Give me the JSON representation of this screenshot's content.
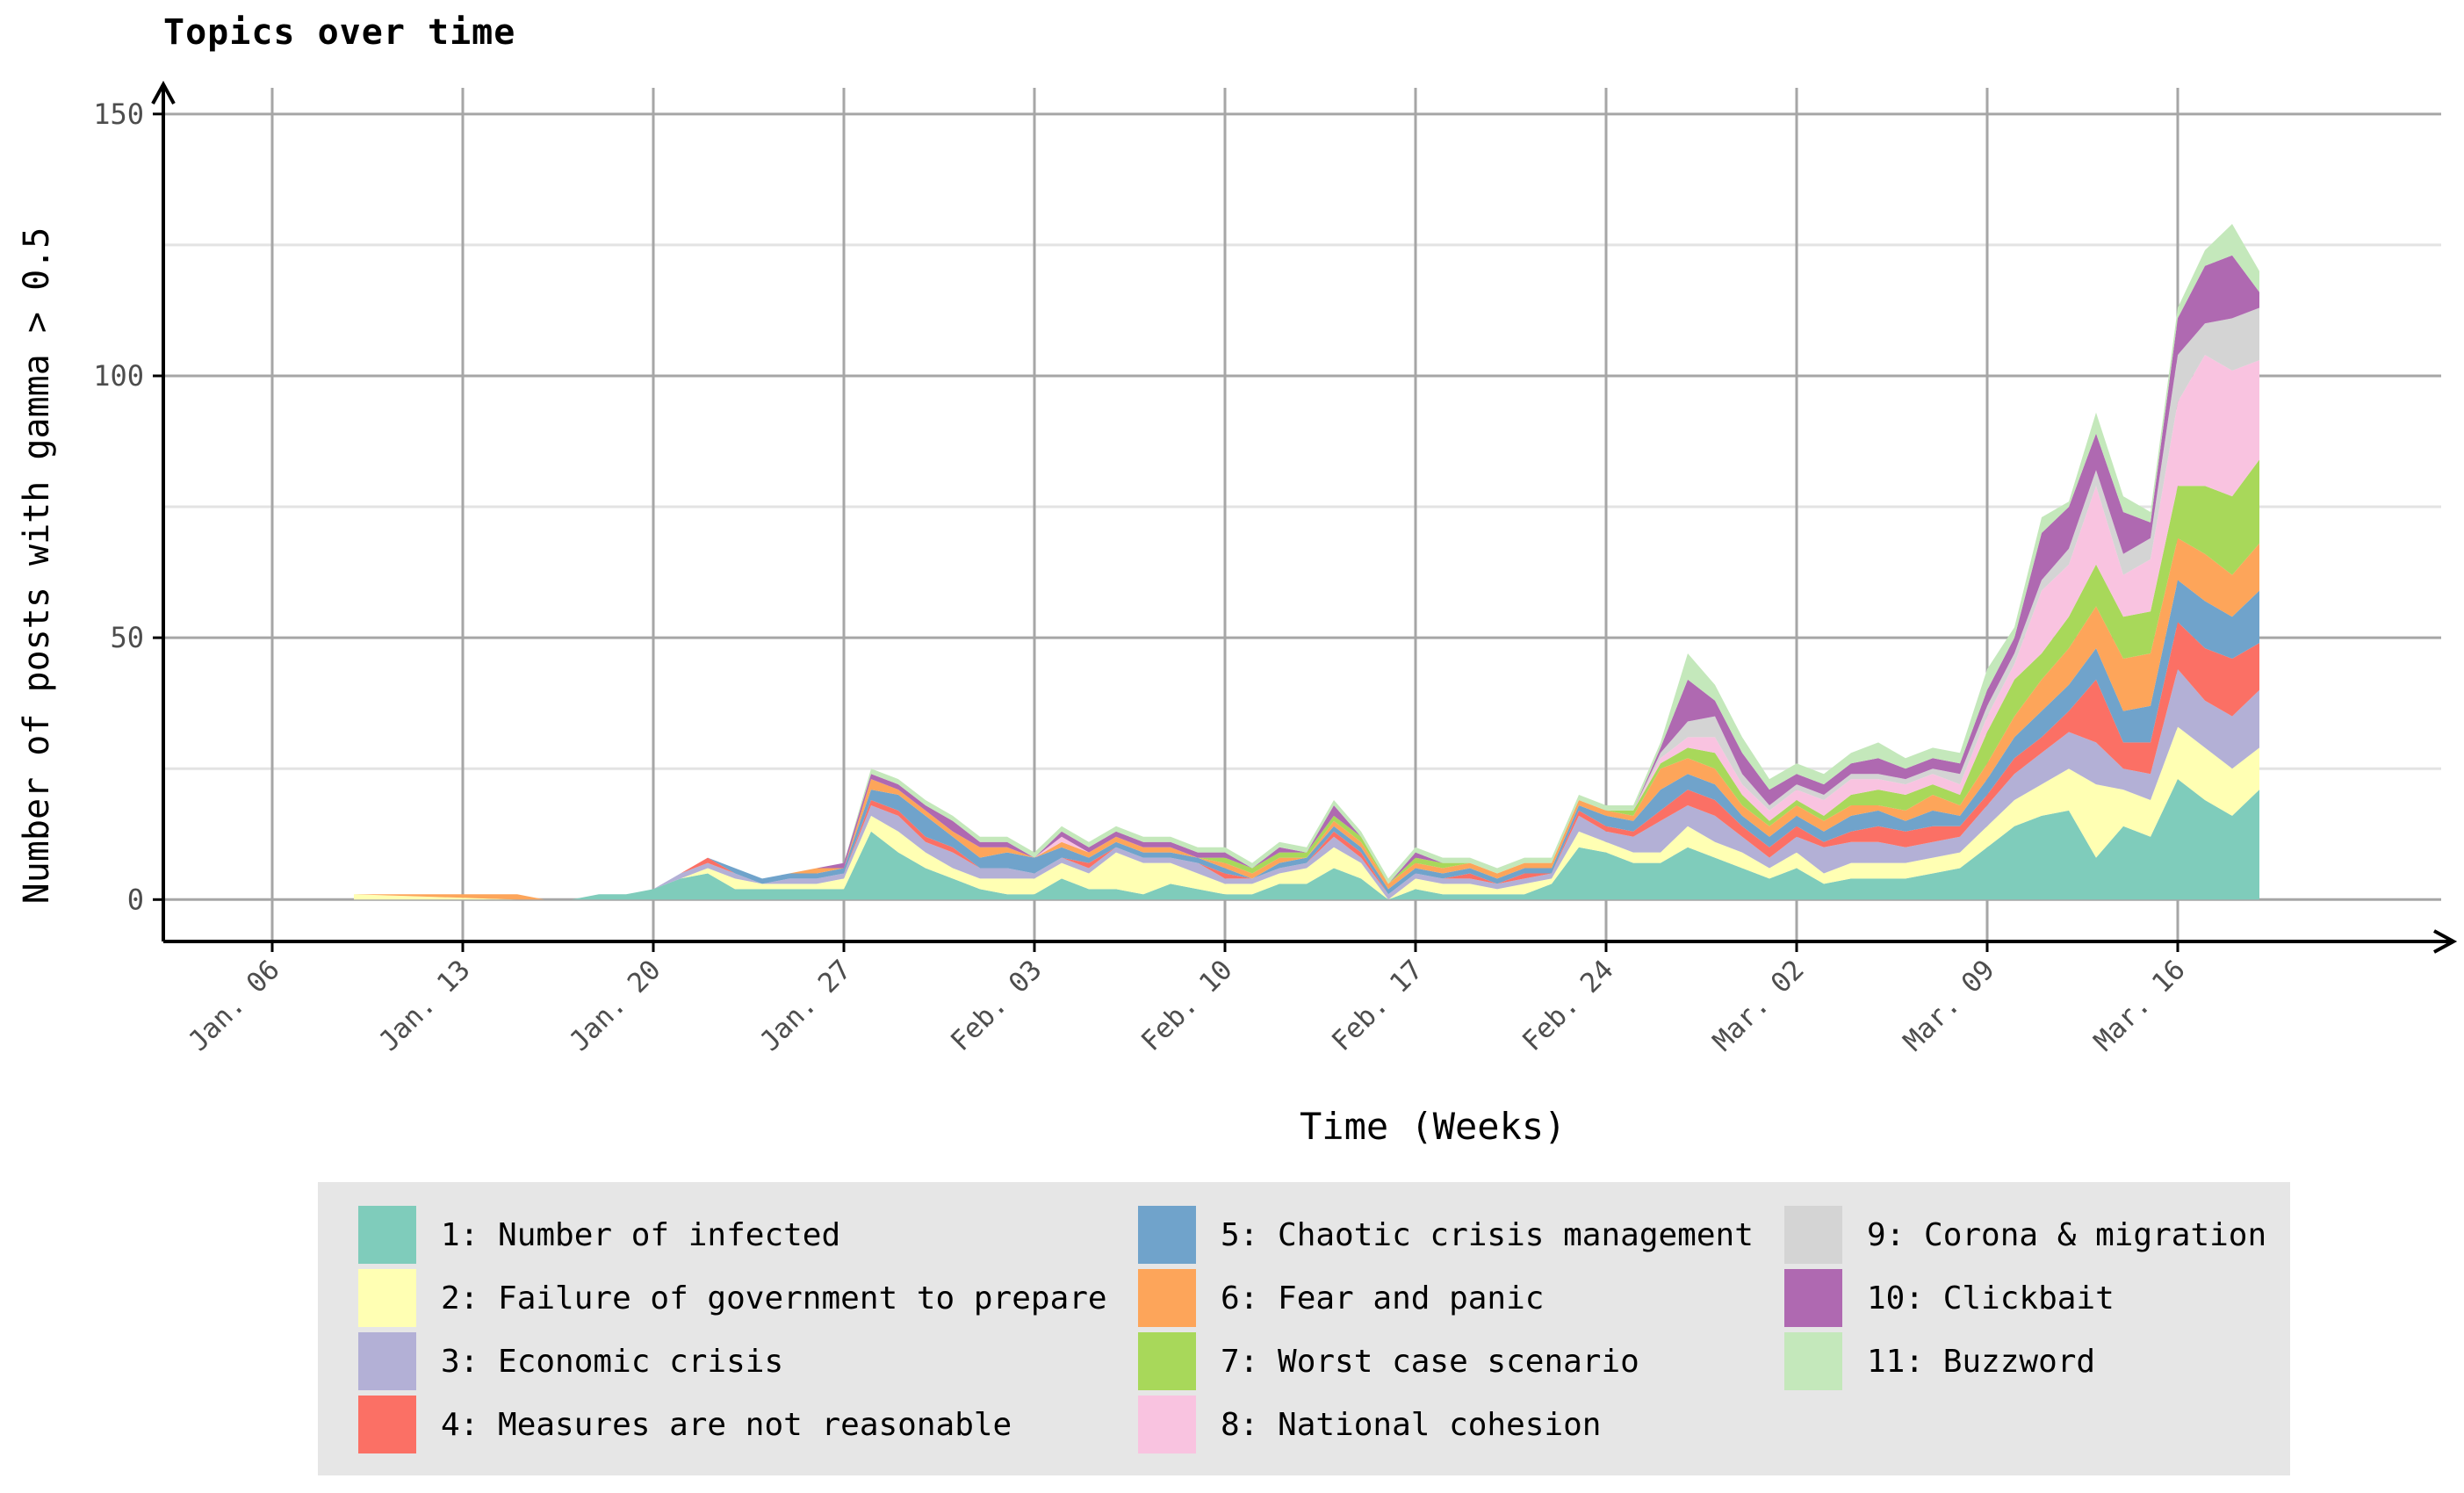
{
  "chart_data": {
    "type": "area",
    "stacked": true,
    "title": "Topics over time",
    "xlabel": "Time (Weeks)",
    "ylabel": "Number of posts with gamma > 0.5",
    "x_tick_labels": [
      "Jan. 06",
      "Jan. 13",
      "Jan. 20",
      "Jan. 27",
      "Feb. 03",
      "Feb. 10",
      "Feb. 17",
      "Feb. 24",
      "Mar. 02",
      "Mar. 09",
      "Mar. 16"
    ],
    "y_ticks": [
      0,
      50,
      100,
      150
    ],
    "ylim": [
      -8,
      155
    ],
    "xlim": [
      "Jan. 02",
      "Mar. 26"
    ],
    "grid": true,
    "legend_position": "bottom",
    "colors": [
      "#7fccbb",
      "#ffffb3",
      "#b3b0d6",
      "#fb7065",
      "#70a3cb",
      "#fda55a",
      "#a8d85a",
      "#f9c3e0",
      "#d4d4d4",
      "#af69b1",
      "#c4e8bb"
    ],
    "x": [
      "Jan. 09",
      "Jan. 15",
      "Jan. 16",
      "Jan. 17",
      "Jan. 18",
      "Jan. 19",
      "Jan. 20",
      "Jan. 21",
      "Jan. 22",
      "Jan. 23",
      "Jan. 24",
      "Jan. 25",
      "Jan. 26",
      "Jan. 27",
      "Jan. 28",
      "Jan. 29",
      "Jan. 30",
      "Jan. 31",
      "Feb. 01",
      "Feb. 02",
      "Feb. 03",
      "Feb. 04",
      "Feb. 05",
      "Feb. 06",
      "Feb. 07",
      "Feb. 08",
      "Feb. 09",
      "Feb. 10",
      "Feb. 11",
      "Feb. 12",
      "Feb. 13",
      "Feb. 14",
      "Feb. 15",
      "Feb. 16",
      "Feb. 17",
      "Feb. 18",
      "Feb. 19",
      "Feb. 20",
      "Feb. 21",
      "Feb. 22",
      "Feb. 23",
      "Feb. 24",
      "Feb. 25",
      "Feb. 26",
      "Feb. 27",
      "Feb. 28",
      "Feb. 29",
      "Mar. 01",
      "Mar. 02",
      "Mar. 03",
      "Mar. 04",
      "Mar. 05",
      "Mar. 06",
      "Mar. 07",
      "Mar. 08",
      "Mar. 09",
      "Mar. 10",
      "Mar. 11",
      "Mar. 12",
      "Mar. 13",
      "Mar. 14",
      "Mar. 15",
      "Mar. 16",
      "Mar. 17",
      "Mar. 18",
      "Mar. 19"
    ],
    "series": [
      {
        "name": "1: Number of infected",
        "values": [
          0,
          0,
          0,
          0,
          1,
          1,
          2,
          4,
          5,
          2,
          2,
          2,
          2,
          2,
          13,
          9,
          6,
          4,
          2,
          1,
          1,
          4,
          2,
          2,
          1,
          3,
          2,
          1,
          1,
          3,
          3,
          6,
          4,
          0,
          2,
          1,
          1,
          1,
          1,
          3,
          10,
          9,
          7,
          7,
          10,
          8,
          6,
          4,
          6,
          3,
          4,
          4,
          4,
          5,
          6,
          10,
          14,
          16,
          17,
          8,
          14,
          12,
          23,
          19,
          16,
          21
        ]
      },
      {
        "name": "2: Failure of government to prepare",
        "values": [
          1,
          0,
          0,
          0,
          0,
          0,
          0,
          0,
          1,
          2,
          1,
          1,
          1,
          2,
          3,
          4,
          3,
          2,
          2,
          3,
          3,
          3,
          3,
          7,
          6,
          4,
          3,
          2,
          2,
          2,
          3,
          4,
          3,
          0,
          2,
          2,
          2,
          1,
          2,
          1,
          3,
          2,
          2,
          2,
          4,
          3,
          3,
          2,
          3,
          2,
          3,
          3,
          3,
          3,
          3,
          4,
          5,
          6,
          8,
          14,
          7,
          7,
          10,
          10,
          9,
          8
        ]
      },
      {
        "name": "3: Economic crisis",
        "values": [
          0,
          0,
          0,
          0,
          0,
          0,
          0,
          1,
          1,
          1,
          0,
          1,
          1,
          1,
          2,
          3,
          2,
          3,
          2,
          2,
          1,
          1,
          1,
          1,
          1,
          1,
          2,
          1,
          1,
          1,
          1,
          2,
          1,
          1,
          1,
          1,
          1,
          1,
          1,
          1,
          3,
          2,
          3,
          6,
          4,
          5,
          3,
          2,
          3,
          5,
          4,
          4,
          3,
          3,
          3,
          4,
          5,
          6,
          7,
          8,
          4,
          5,
          11,
          9,
          10,
          11
        ]
      },
      {
        "name": "4: Measures are not reasonable",
        "values": [
          0,
          0,
          0,
          0,
          0,
          0,
          0,
          0,
          1,
          0,
          0,
          0,
          0,
          0,
          1,
          1,
          1,
          1,
          0,
          0,
          0,
          0,
          1,
          0,
          0,
          0,
          0,
          1,
          0,
          0,
          0,
          1,
          1,
          0,
          0,
          0,
          1,
          0,
          1,
          0,
          1,
          1,
          1,
          2,
          3,
          3,
          2,
          2,
          2,
          1,
          2,
          3,
          3,
          3,
          2,
          2,
          3,
          3,
          4,
          12,
          5,
          6,
          9,
          10,
          11,
          9
        ]
      },
      {
        "name": "5: Chaotic crisis management",
        "values": [
          0,
          0,
          0,
          0,
          0,
          0,
          0,
          0,
          0,
          1,
          1,
          1,
          1,
          1,
          2,
          3,
          4,
          2,
          2,
          3,
          3,
          2,
          1,
          1,
          1,
          1,
          1,
          1,
          0,
          1,
          1,
          1,
          1,
          1,
          1,
          1,
          1,
          1,
          1,
          1,
          1,
          2,
          2,
          4,
          3,
          3,
          2,
          2,
          2,
          2,
          3,
          3,
          2,
          3,
          2,
          3,
          4,
          5,
          5,
          6,
          6,
          7,
          8,
          9,
          8,
          10
        ]
      },
      {
        "name": "6: Fear and panic",
        "values": [
          0,
          1,
          0,
          0,
          0,
          0,
          0,
          0,
          0,
          0,
          0,
          0,
          1,
          0,
          2,
          1,
          1,
          1,
          2,
          1,
          0,
          1,
          1,
          1,
          1,
          1,
          0,
          1,
          1,
          1,
          0,
          1,
          1,
          1,
          1,
          1,
          1,
          1,
          1,
          1,
          1,
          1,
          1,
          4,
          3,
          3,
          2,
          2,
          2,
          2,
          2,
          1,
          2,
          3,
          2,
          3,
          4,
          6,
          7,
          8,
          10,
          10,
          8,
          9,
          8,
          9
        ]
      },
      {
        "name": "7: Worst case scenario",
        "values": [
          0,
          0,
          0,
          0,
          0,
          0,
          0,
          0,
          0,
          0,
          0,
          0,
          0,
          0,
          0,
          0,
          0,
          0,
          0,
          0,
          0,
          0,
          0,
          0,
          0,
          0,
          0,
          1,
          1,
          1,
          1,
          1,
          1,
          0,
          1,
          1,
          0,
          0,
          0,
          0,
          0,
          0,
          1,
          1,
          2,
          3,
          2,
          1,
          1,
          1,
          2,
          3,
          3,
          2,
          2,
          6,
          7,
          5,
          6,
          8,
          8,
          8,
          10,
          13,
          15,
          16
        ]
      },
      {
        "name": "8: National cohesion",
        "values": [
          0,
          0,
          0,
          0,
          0,
          0,
          0,
          0,
          0,
          0,
          0,
          0,
          0,
          0,
          0,
          0,
          0,
          0,
          0,
          0,
          0,
          1,
          0,
          0,
          0,
          0,
          0,
          0,
          0,
          0,
          0,
          0,
          0,
          0,
          0,
          0,
          0,
          0,
          0,
          0,
          0,
          0,
          0,
          1,
          2,
          3,
          2,
          2,
          2,
          3,
          3,
          2,
          2,
          2,
          2,
          3,
          3,
          12,
          10,
          15,
          8,
          10,
          16,
          25,
          24,
          19
        ]
      },
      {
        "name": "9: Corona & migration",
        "values": [
          0,
          0,
          0,
          0,
          0,
          0,
          0,
          0,
          0,
          0,
          0,
          0,
          0,
          0,
          0,
          0,
          0,
          0,
          0,
          0,
          0,
          0,
          0,
          0,
          0,
          0,
          0,
          0,
          0,
          0,
          0,
          0,
          0,
          0,
          0,
          0,
          0,
          0,
          0,
          0,
          0,
          0,
          0,
          1,
          3,
          4,
          2,
          1,
          1,
          1,
          1,
          1,
          1,
          1,
          2,
          2,
          2,
          2,
          3,
          3,
          4,
          4,
          9,
          6,
          10,
          10
        ]
      },
      {
        "name": "10: Clickbait",
        "values": [
          0,
          0,
          0,
          0,
          0,
          0,
          0,
          0,
          0,
          0,
          0,
          0,
          0,
          1,
          1,
          1,
          1,
          2,
          1,
          1,
          0,
          1,
          1,
          1,
          1,
          1,
          1,
          1,
          0,
          1,
          0,
          2,
          0,
          0,
          1,
          0,
          0,
          0,
          0,
          0,
          0,
          0,
          0,
          1,
          8,
          3,
          4,
          3,
          2,
          2,
          2,
          3,
          2,
          2,
          2,
          3,
          3,
          9,
          8,
          7,
          8,
          3,
          7,
          11,
          12,
          3
        ]
      },
      {
        "name": "11: Buzzword",
        "values": [
          0,
          0,
          0,
          0,
          0,
          0,
          0,
          0,
          0,
          0,
          0,
          0,
          0,
          0,
          1,
          1,
          1,
          1,
          1,
          1,
          1,
          1,
          1,
          1,
          1,
          1,
          1,
          1,
          1,
          1,
          1,
          1,
          1,
          1,
          1,
          1,
          1,
          1,
          1,
          1,
          1,
          1,
          1,
          1,
          5,
          3,
          3,
          2,
          2,
          2,
          2,
          3,
          2,
          2,
          2,
          4,
          2,
          3,
          1,
          4,
          3,
          2,
          2,
          3,
          6,
          4
        ]
      }
    ]
  }
}
